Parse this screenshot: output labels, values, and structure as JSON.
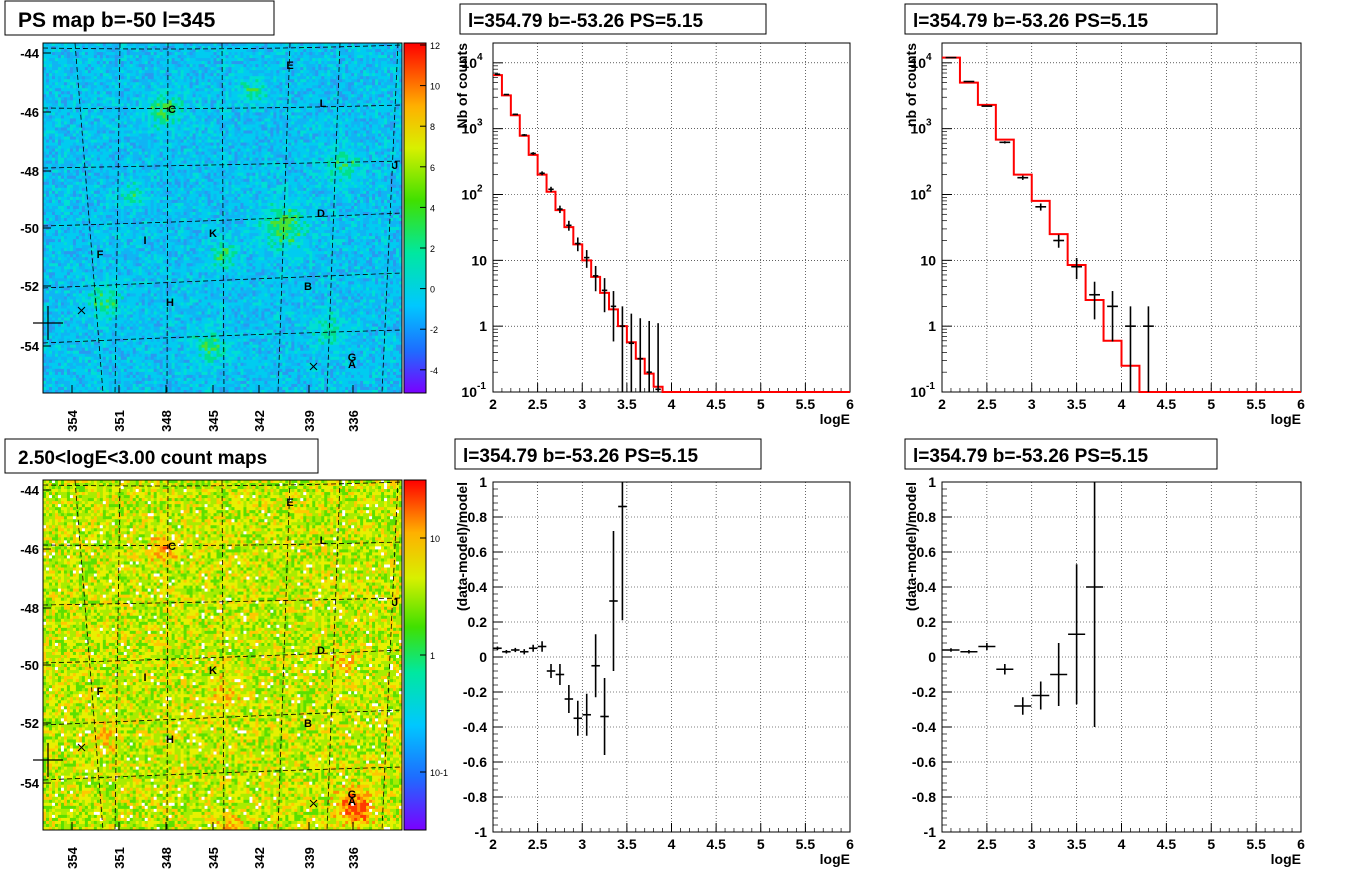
{
  "panels": {
    "map_top_title": "PS map b=-50 l=345",
    "map_bottom_title": "2.50<logE<3.00 count maps",
    "spectrum_title": "l=354.79 b=-53.26 PS=5.15"
  },
  "maps": {
    "y_ticks": [
      "-44",
      "-46",
      "-48",
      "-50",
      "-52",
      "-54"
    ],
    "x_ticks": [
      "354",
      "351",
      "348",
      "345",
      "342",
      "339",
      "336"
    ],
    "top_colorbar_ticks": [
      "12",
      "10",
      "8",
      "6",
      "4",
      "2",
      "0",
      "-2",
      "-4"
    ],
    "bottom_colorbar_ticks": [
      "10",
      "1",
      "10-1"
    ],
    "source_labels": [
      {
        "id": "E"
      },
      {
        "id": "L"
      },
      {
        "id": "C"
      },
      {
        "id": "J"
      },
      {
        "id": "D"
      },
      {
        "id": "K"
      },
      {
        "id": "I"
      },
      {
        "id": "F"
      },
      {
        "id": "B"
      },
      {
        "id": "H"
      },
      {
        "id": "G"
      },
      {
        "id": "A"
      }
    ]
  },
  "chart_data": [
    {
      "type": "histogram",
      "title": "l=354.79 b=-53.26 PS=5.15",
      "xlabel": "logE",
      "ylabel": "Nb of counts",
      "xlim": [
        2,
        6
      ],
      "ylim": [
        0.1,
        20000
      ],
      "yscale": "log",
      "x_ticks": [
        "2",
        "2.5",
        "3",
        "3.5",
        "4",
        "4.5",
        "5",
        "5.5",
        "6"
      ],
      "y_ticks": [
        "10^4",
        "10^3",
        "10^2",
        "10",
        "1",
        "10^-1"
      ],
      "grid": true,
      "series": [
        {
          "style": "step",
          "x": [
            2.0,
            2.1,
            2.2,
            2.3,
            2.4,
            2.5,
            2.6,
            2.7,
            2.8,
            2.9,
            3.0,
            3.1,
            3.2,
            3.3,
            3.4,
            3.5,
            3.6,
            3.7,
            3.8,
            3.9,
            4.0,
            4.1,
            4.2,
            4.3,
            4.4,
            4.5,
            4.6,
            4.7,
            4.8,
            4.9,
            5.0,
            5.1,
            5.2,
            5.3,
            5.4,
            5.5,
            5.6,
            5.7,
            5.8,
            5.9,
            6.0
          ],
          "values": [
            6500,
            3200,
            1600,
            780,
            400,
            200,
            110,
            58,
            32,
            17.5,
            10,
            5.6,
            3.2,
            1.8,
            1.0,
            0.57,
            0.32,
            0.19,
            0.12,
            0.1,
            0.1,
            0.1,
            0.1,
            0.1,
            0.1,
            0.1,
            0.1,
            0.1,
            0.1,
            0.1,
            0.1,
            0.1,
            0.1,
            0.1,
            0.1,
            0.1,
            0.1,
            0.1,
            0.1,
            0.1,
            0.1
          ]
        },
        {
          "style": "errorbar",
          "x": [
            2.05,
            2.15,
            2.25,
            2.35,
            2.45,
            2.55,
            2.65,
            2.75,
            2.85,
            2.95,
            3.05,
            3.15,
            3.25,
            3.35,
            3.45,
            3.55,
            3.65,
            3.75,
            3.85,
            3.95,
            4.05,
            4.15,
            4.25,
            4.35
          ],
          "values": [
            6700,
            3300,
            1650,
            800,
            420,
            210,
            120,
            60,
            34,
            18,
            11,
            5.8,
            3.5,
            2.0,
            1.0,
            0.55,
            0.32,
            0.2,
            0.11,
            0.1,
            0.1,
            0.1,
            0.1,
            0.1
          ],
          "points": [
            [
              2.05,
              6700
            ],
            [
              2.15,
              3300
            ],
            [
              2.25,
              1650
            ],
            [
              2.35,
              800
            ],
            [
              2.45,
              420
            ],
            [
              2.55,
              210
            ],
            [
              2.65,
              120
            ],
            [
              2.75,
              60
            ],
            [
              2.85,
              34
            ],
            [
              2.95,
              18
            ],
            [
              3.05,
              11
            ],
            [
              3.15,
              5.8
            ],
            [
              3.25,
              3.5
            ],
            [
              3.35,
              2.0
            ],
            [
              3.45,
              1.0
            ],
            [
              3.55,
              0.55
            ],
            [
              3.65,
              0.32
            ],
            [
              3.75,
              0.2
            ],
            [
              3.85,
              0.11
            ],
            [
              3.95,
              0.1
            ],
            [
              4.05,
              0.1
            ],
            [
              4.15,
              0.1
            ],
            [
              4.25,
              0.1
            ],
            [
              4.35,
              0.1
            ]
          ]
        }
      ]
    },
    {
      "type": "histogram",
      "title": "l=354.79 b=-53.26 PS=5.15",
      "xlabel": "logE",
      "ylabel": "nb of counts",
      "xlim": [
        2,
        6
      ],
      "ylim": [
        0.1,
        20000
      ],
      "yscale": "log",
      "x_ticks": [
        "2",
        "2.5",
        "3",
        "3.5",
        "4",
        "4.5",
        "5",
        "5.5",
        "6"
      ],
      "y_ticks": [
        "10^4",
        "10^3",
        "10^2",
        "10",
        "1",
        "10^-1"
      ],
      "grid": true,
      "series": [
        {
          "style": "step",
          "x": [
            2.0,
            2.2,
            2.4,
            2.6,
            2.8,
            3.0,
            3.2,
            3.4,
            3.6,
            3.8,
            4.0,
            4.2,
            4.4,
            4.6,
            4.8,
            5.0,
            5.2,
            5.4,
            5.6,
            5.8,
            6.0
          ],
          "values": [
            12000,
            5000,
            2300,
            680,
            200,
            80,
            25,
            8.5,
            2.5,
            0.6,
            0.25,
            0.1,
            0.1,
            0.1,
            0.1,
            0.1,
            0.1,
            0.1,
            0.1,
            0.1,
            0.1
          ]
        },
        {
          "style": "errorbar",
          "x": [
            2.1,
            2.3,
            2.5,
            2.7,
            2.9,
            3.1,
            3.3,
            3.5,
            3.7,
            3.9,
            4.1,
            4.3
          ],
          "values": [
            12000,
            5200,
            2200,
            620,
            180,
            65,
            20,
            8,
            3,
            2,
            1,
            1
          ],
          "points": [
            [
              2.1,
              12000
            ],
            [
              2.3,
              5200
            ],
            [
              2.5,
              2200
            ],
            [
              2.7,
              620
            ],
            [
              2.9,
              180
            ],
            [
              3.1,
              65
            ],
            [
              3.3,
              20
            ],
            [
              3.5,
              8
            ],
            [
              3.7,
              3
            ],
            [
              3.9,
              2
            ],
            [
              4.1,
              1
            ],
            [
              4.3,
              1
            ]
          ]
        }
      ]
    },
    {
      "type": "scatter",
      "title": "l=354.79 b=-53.26 PS=5.15",
      "xlabel": "logE",
      "ylabel": "(data-model)/model",
      "xlim": [
        2,
        6
      ],
      "ylim": [
        -1,
        1
      ],
      "x_ticks": [
        "2",
        "2.5",
        "3",
        "3.5",
        "4",
        "4.5",
        "5",
        "5.5",
        "6"
      ],
      "y_ticks": [
        "1",
        "0.8",
        "0.6",
        "0.4",
        "0.2",
        "0",
        "-0.2",
        "-0.4",
        "-0.6",
        "-0.8",
        "-1"
      ],
      "grid": true,
      "series": [
        {
          "style": "errorbar",
          "x": [
            2.05,
            2.15,
            2.25,
            2.35,
            2.45,
            2.55,
            2.65,
            2.75,
            2.85,
            2.95,
            3.05,
            3.15,
            3.25,
            3.35,
            3.45
          ],
          "values": [
            0.05,
            0.03,
            0.04,
            0.03,
            0.05,
            0.06,
            -0.08,
            -0.1,
            -0.24,
            -0.35,
            -0.33,
            -0.05,
            -0.34,
            0.32,
            0.86
          ],
          "errors": [
            0.01,
            0.01,
            0.012,
            0.015,
            0.02,
            0.03,
            0.04,
            0.06,
            0.08,
            0.1,
            0.12,
            0.18,
            0.22,
            0.4,
            0.65
          ]
        }
      ]
    },
    {
      "type": "scatter",
      "title": "l=354.79 b=-53.26 PS=5.15",
      "xlabel": "logE",
      "ylabel": "(data-model)/model",
      "xlim": [
        2,
        6
      ],
      "ylim": [
        -1,
        1
      ],
      "x_ticks": [
        "2",
        "2.5",
        "3",
        "3.5",
        "4",
        "4.5",
        "5",
        "5.5",
        "6"
      ],
      "y_ticks": [
        "1",
        "0.8",
        "0.6",
        "0.4",
        "0.2",
        "0",
        "-0.2",
        "-0.4",
        "-0.6",
        "-0.8",
        "-1"
      ],
      "grid": true,
      "series": [
        {
          "style": "errorbar",
          "x": [
            2.1,
            2.3,
            2.5,
            2.7,
            2.9,
            3.1,
            3.3,
            3.5,
            3.7
          ],
          "values": [
            0.04,
            0.03,
            0.06,
            -0.07,
            -0.28,
            -0.22,
            -0.1,
            0.13,
            0.4
          ],
          "errors": [
            0.01,
            0.01,
            0.02,
            0.03,
            0.05,
            0.08,
            0.18,
            0.4,
            0.8
          ]
        }
      ]
    }
  ]
}
